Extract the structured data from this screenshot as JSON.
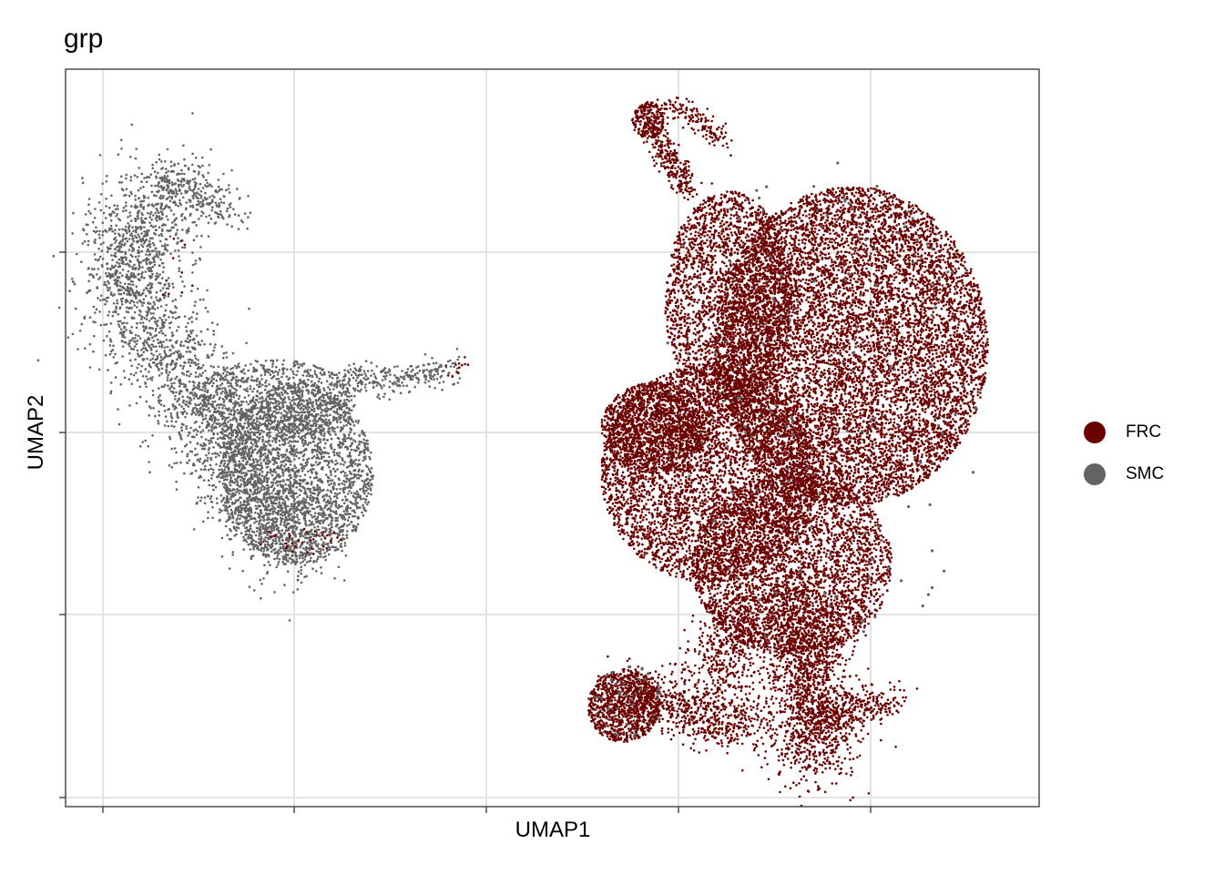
{
  "chart_data": {
    "type": "scatter",
    "title": "grp",
    "xlabel": "UMAP1",
    "ylabel": "UMAP2",
    "grid": true,
    "axis_ticks_labeled": false,
    "legend_position": "right",
    "series": [
      {
        "name": "FRC",
        "color": "#6B0000",
        "description_regions": "large dense cluster on right side with top loop and lower-left lobe; sparse points near tip of gray tail and bottom of gray cluster"
      },
      {
        "name": "SMC",
        "color": "#636363",
        "description_regions": "curved cluster on left side with tail extending right; sparse points scattered within red cluster"
      }
    ]
  },
  "legend": {
    "items": [
      {
        "label": "FRC",
        "color": "#6B0000"
      },
      {
        "label": "SMC",
        "color": "#636363"
      }
    ]
  }
}
